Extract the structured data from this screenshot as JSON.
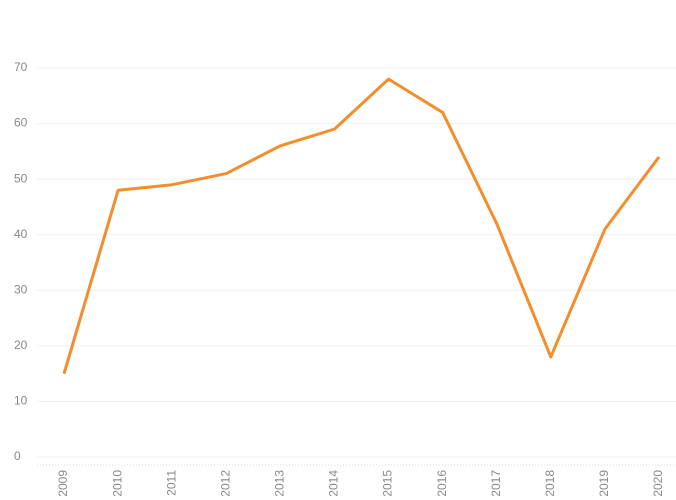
{
  "chart_data": {
    "type": "line",
    "categories": [
      "2009",
      "2010",
      "2011",
      "2012",
      "2013",
      "2014",
      "2015",
      "2016",
      "2017",
      "2018",
      "2019",
      "2020"
    ],
    "values": [
      15,
      48,
      49,
      51,
      56,
      59,
      68,
      62,
      42,
      18,
      41,
      54
    ],
    "color": "#f28e2b",
    "ylim": [
      0,
      70
    ],
    "yticks": [
      0,
      10,
      20,
      30,
      40,
      50,
      60,
      70
    ],
    "grid": true
  }
}
